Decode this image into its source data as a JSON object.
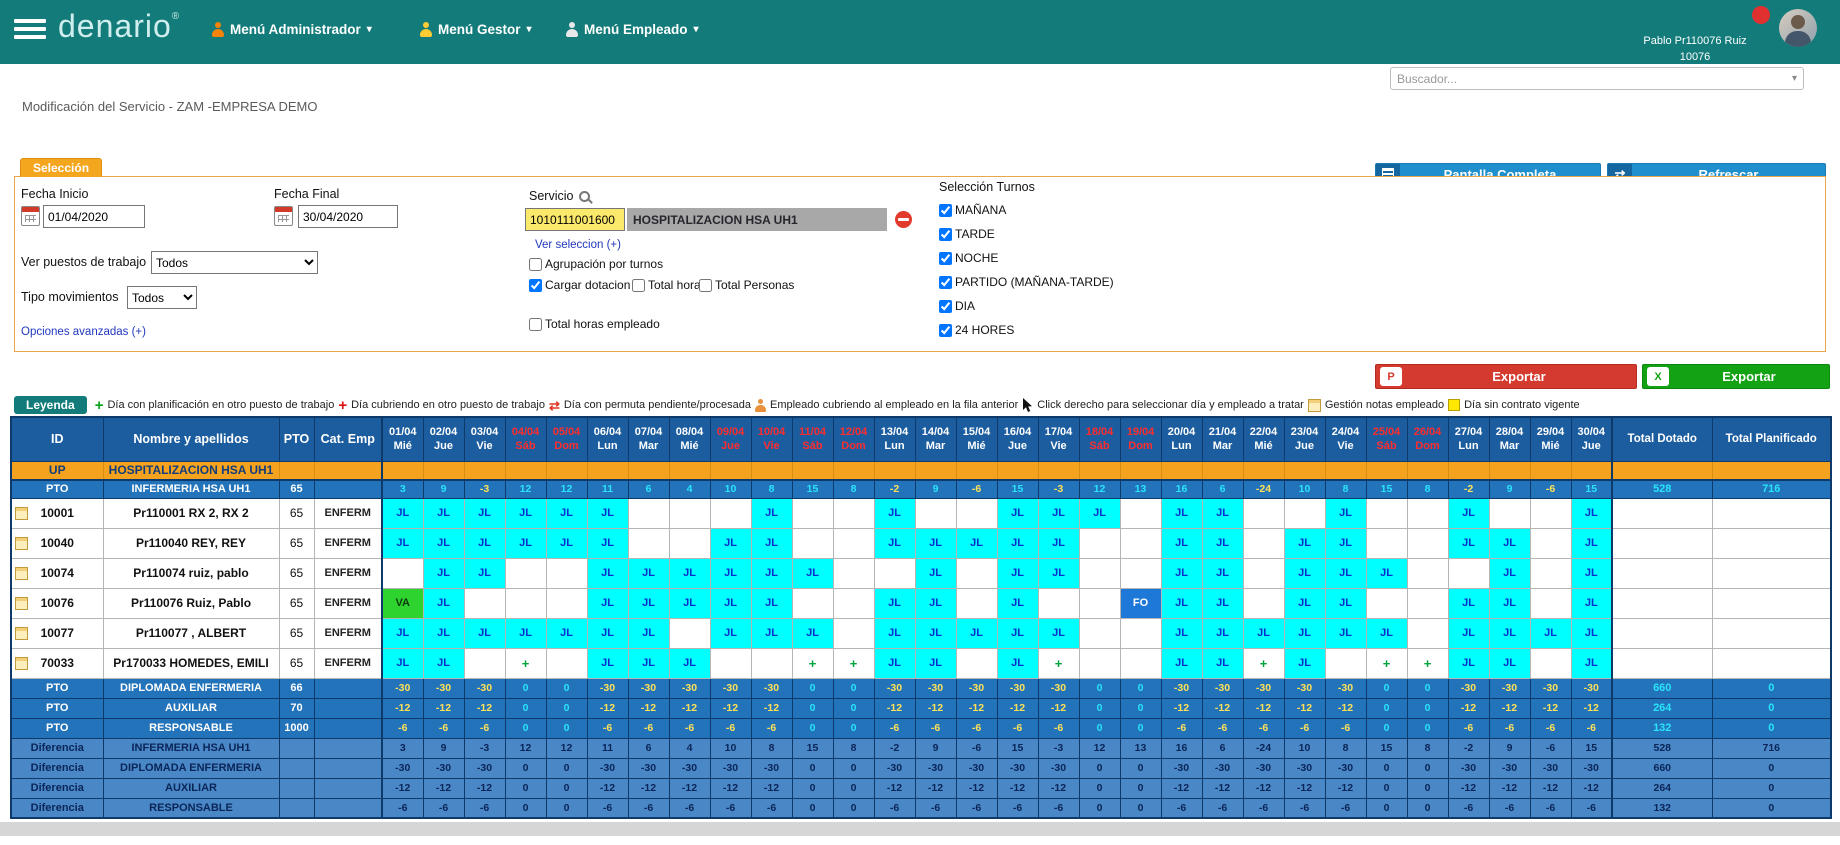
{
  "colors": {
    "topbar_teal": "#137c7b",
    "header_blue": "#1c5d9f",
    "pto_row_blue": "#2273ba",
    "diff_row_blue": "#4a87c6",
    "up_orange": "#f5a21f",
    "jl_cyan": "#00ffff",
    "va_green": "#2fd32f",
    "fo_blue": "#1d78d8",
    "holiday_red": "#ff2d2d",
    "button_blue": "#1f8fce",
    "export_pdf_red": "#d53a2f",
    "export_excel_green": "#13a213",
    "tab_orange": "#f5a61f",
    "service_code_yellow": "#fbe96c"
  },
  "topbar": {
    "brand": "denario",
    "brand_mark": "®",
    "menus": [
      {
        "label": "Menú Administrador"
      },
      {
        "label": "Menú Gestor"
      },
      {
        "label": "Menú Empleado"
      }
    ],
    "user_name": "Pablo Pr110076 Ruiz",
    "user_id": "10076"
  },
  "search": {
    "placeholder": "Buscador..."
  },
  "page_title": "Modificación del Servicio - ZAM -EMPRESA DEMO",
  "panel": {
    "tab": "Selección",
    "fecha_inicio_label": "Fecha Inicio",
    "fecha_inicio_value": "01/04/2020",
    "fecha_final_label": "Fecha Final",
    "fecha_final_value": "30/04/2020",
    "servicio_label": "Servicio",
    "servicio_code": "1010111001600",
    "servicio_name": "HOSPITALIZACION HSA UH1",
    "ver_seleccion": "Ver seleccion (+)",
    "checks": {
      "agrupacion": {
        "label": "Agrupación por turnos",
        "checked": false
      },
      "cargar": {
        "label": "Cargar dotacion",
        "checked": true
      },
      "total_horas": {
        "label": "Total horas",
        "checked": false
      },
      "total_personas": {
        "label": "Total Personas",
        "checked": false
      },
      "total_horas_empleado": {
        "label": "Total horas empleado",
        "checked": false
      }
    },
    "ver_puestos_label": "Ver puestos de trabajo",
    "ver_puestos_value": "Todos",
    "tipo_mov_label": "Tipo movimientos",
    "tipo_mov_value": "Todos",
    "opciones_avanzadas": "Opciones avanzadas (+)",
    "turnos_label": "Selección Turnos",
    "turnos": [
      {
        "label": "MAÑANA",
        "checked": true
      },
      {
        "label": "TARDE",
        "checked": true
      },
      {
        "label": "NOCHE",
        "checked": true
      },
      {
        "label": "PARTIDO (MAÑANA-TARDE)",
        "checked": true
      },
      {
        "label": "DIA",
        "checked": true
      },
      {
        "label": "24 HORES",
        "checked": true
      }
    ],
    "btn_pantalla": "Pantalla Completa",
    "btn_refrescar": "Refrescar"
  },
  "export": {
    "pdf_label": "Exportar",
    "excel_label": "Exportar"
  },
  "legend": {
    "button": "Leyenda",
    "items": [
      {
        "icon": "green-plus",
        "text": "Día con planificación en otro puesto de trabajo"
      },
      {
        "icon": "red-plus",
        "text": "Día cubriendo en otro puesto de trabajo"
      },
      {
        "icon": "red-swap",
        "text": "Día con permuta pendiente/procesada"
      },
      {
        "icon": "person",
        "text": "Empleado cubriendo al empleado en la fila anterior"
      },
      {
        "icon": "cursor",
        "text": "Click derecho para seleccionar día y empleado a tratar"
      },
      {
        "icon": "note",
        "text": "Gestión notas empleado"
      },
      {
        "icon": "yellow-square",
        "text": "Día sin contrato vigente"
      }
    ]
  },
  "grid": {
    "col_headers": [
      "ID",
      "Nombre y apellidos",
      "PTO",
      "Cat. Emp"
    ],
    "total_headers": [
      "Total Dotado",
      "Total Planificado"
    ],
    "dates": [
      {
        "date": "01/04",
        "day": "Mié",
        "holiday": false
      },
      {
        "date": "02/04",
        "day": "Jue",
        "holiday": false
      },
      {
        "date": "03/04",
        "day": "Vie",
        "holiday": false
      },
      {
        "date": "04/04",
        "day": "Sáb",
        "holiday": true
      },
      {
        "date": "05/04",
        "day": "Dom",
        "holiday": true
      },
      {
        "date": "06/04",
        "day": "Lun",
        "holiday": false
      },
      {
        "date": "07/04",
        "day": "Mar",
        "holiday": false
      },
      {
        "date": "08/04",
        "day": "Mié",
        "holiday": false
      },
      {
        "date": "09/04",
        "day": "Jue",
        "holiday": true
      },
      {
        "date": "10/04",
        "day": "Vie",
        "holiday": true
      },
      {
        "date": "11/04",
        "day": "Sáb",
        "holiday": true
      },
      {
        "date": "12/04",
        "day": "Dom",
        "holiday": true
      },
      {
        "date": "13/04",
        "day": "Lun",
        "holiday": false
      },
      {
        "date": "14/04",
        "day": "Mar",
        "holiday": false
      },
      {
        "date": "15/04",
        "day": "Mié",
        "holiday": false
      },
      {
        "date": "16/04",
        "day": "Jue",
        "holiday": false
      },
      {
        "date": "17/04",
        "day": "Vie",
        "holiday": false
      },
      {
        "date": "18/04",
        "day": "Sáb",
        "holiday": true
      },
      {
        "date": "19/04",
        "day": "Dom",
        "holiday": true
      },
      {
        "date": "20/04",
        "day": "Lun",
        "holiday": false
      },
      {
        "date": "21/04",
        "day": "Mar",
        "holiday": false
      },
      {
        "date": "22/04",
        "day": "Mié",
        "holiday": false
      },
      {
        "date": "23/04",
        "day": "Jue",
        "holiday": false
      },
      {
        "date": "24/04",
        "day": "Vie",
        "holiday": false
      },
      {
        "date": "25/04",
        "day": "Sáb",
        "holiday": true
      },
      {
        "date": "26/04",
        "day": "Dom",
        "holiday": true
      },
      {
        "date": "27/04",
        "day": "Lun",
        "holiday": false
      },
      {
        "date": "28/04",
        "day": "Mar",
        "holiday": false
      },
      {
        "date": "29/04",
        "day": "Mié",
        "holiday": false
      },
      {
        "date": "30/04",
        "day": "Jue",
        "holiday": false
      }
    ],
    "up_row": {
      "tag": "UP",
      "name": "HOSPITALIZACION HSA UH1"
    },
    "pto_rows_top": [
      {
        "tag": "PTO",
        "name": "INFERMERIA HSA UH1",
        "pto": "65",
        "cat": "",
        "values": [
          3,
          9,
          -3,
          12,
          12,
          11,
          6,
          4,
          10,
          8,
          15,
          8,
          -2,
          9,
          -6,
          15,
          -3,
          12,
          13,
          16,
          6,
          -24,
          10,
          8,
          15,
          8,
          -2,
          9,
          -6,
          15
        ],
        "total_dotado": "528",
        "total_planificado": "716"
      }
    ],
    "employees": [
      {
        "id": "10001",
        "name": "Pr110001 RX 2, RX 2",
        "pto": "65",
        "cat": "ENFERM",
        "cells": [
          "JL",
          "JL",
          "JL",
          "JL",
          "JL",
          "JL",
          "",
          "",
          "",
          "JL",
          "",
          "",
          "JL",
          "",
          "",
          "JL",
          "JL",
          "JL",
          "",
          "JL",
          "JL",
          "",
          "",
          "JL",
          "",
          "",
          "JL",
          "",
          "",
          "JL"
        ]
      },
      {
        "id": "10040",
        "name": "Pr110040 REY, REY",
        "pto": "65",
        "cat": "ENFERM",
        "cells": [
          "JL",
          "JL",
          "JL",
          "JL",
          "JL",
          "JL",
          "",
          "",
          "JL",
          "JL",
          "",
          "",
          "JL",
          "JL",
          "JL",
          "JL",
          "JL",
          "",
          "",
          "JL",
          "JL",
          "",
          "JL",
          "JL",
          "",
          "",
          "JL",
          "JL",
          "",
          "JL"
        ]
      },
      {
        "id": "10074",
        "name": "Pr110074 ruiz, pablo",
        "pto": "65",
        "cat": "ENFERM",
        "cells": [
          "",
          "JL",
          "JL",
          "",
          "",
          "JL",
          "JL",
          "JL",
          "JL",
          "JL",
          "JL",
          "",
          "",
          "JL",
          "",
          "JL",
          "JL",
          "",
          "",
          "JL",
          "JL",
          "",
          "JL",
          "JL",
          "JL",
          "",
          "",
          "JL",
          "",
          "JL"
        ]
      },
      {
        "id": "10076",
        "name": "Pr110076 Ruiz, Pablo",
        "pto": "65",
        "cat": "ENFERM",
        "cells": [
          "VA",
          "JL",
          "",
          "",
          "",
          "JL",
          "JL",
          "JL",
          "JL",
          "JL",
          "",
          "",
          "JL",
          "JL",
          "",
          "JL",
          "",
          "",
          "FO",
          "JL",
          "JL",
          "",
          "JL",
          "JL",
          "",
          "",
          "JL",
          "JL",
          "",
          "JL"
        ]
      },
      {
        "id": "10077",
        "name": "Pr110077 , ALBERT",
        "pto": "65",
        "cat": "ENFERM",
        "cells": [
          "JL",
          "JL",
          "JL",
          "JL",
          "JL",
          "JL",
          "JL",
          "",
          "JL",
          "JL",
          "JL",
          "",
          "JL",
          "JL",
          "JL",
          "JL",
          "JL",
          "",
          "",
          "JL",
          "JL",
          "JL",
          "JL",
          "JL",
          "JL",
          "",
          "JL",
          "JL",
          "JL",
          "JL"
        ]
      },
      {
        "id": "70033",
        "name": "Pr170033 HOMEDES, EMILI",
        "pto": "65",
        "cat": "ENFERM",
        "cells": [
          "JL",
          "JL",
          "",
          "+",
          "",
          "JL",
          "JL",
          "JL",
          "",
          "",
          "+",
          "+",
          "JL",
          "JL",
          "",
          "JL",
          "+",
          "",
          "",
          "JL",
          "JL",
          "+",
          "JL",
          "",
          "+",
          "+",
          "JL",
          "JL",
          "",
          "JL"
        ]
      }
    ],
    "pto_rows_bottom": [
      {
        "tag": "PTO",
        "name": "DIPLOMADA ENFERMERIA",
        "pto": "66",
        "cat": "",
        "values": [
          -30,
          -30,
          -30,
          0,
          0,
          -30,
          -30,
          -30,
          -30,
          -30,
          0,
          0,
          -30,
          -30,
          -30,
          -30,
          -30,
          0,
          0,
          -30,
          -30,
          -30,
          -30,
          -30,
          0,
          0,
          -30,
          -30,
          -30,
          -30
        ],
        "total_dotado": "660",
        "total_planificado": "0"
      },
      {
        "tag": "PTO",
        "name": "AUXILIAR",
        "pto": "70",
        "cat": "",
        "values": [
          -12,
          -12,
          -12,
          0,
          0,
          -12,
          -12,
          -12,
          -12,
          -12,
          0,
          0,
          -12,
          -12,
          -12,
          -12,
          -12,
          0,
          0,
          -12,
          -12,
          -12,
          -12,
          -12,
          0,
          0,
          -12,
          -12,
          -12,
          -12
        ],
        "total_dotado": "264",
        "total_planificado": "0"
      },
      {
        "tag": "PTO",
        "name": "RESPONSABLE",
        "pto": "1000",
        "cat": "",
        "values": [
          -6,
          -6,
          -6,
          0,
          0,
          -6,
          -6,
          -6,
          -6,
          -6,
          0,
          0,
          -6,
          -6,
          -6,
          -6,
          -6,
          0,
          0,
          -6,
          -6,
          -6,
          -6,
          -6,
          0,
          0,
          -6,
          -6,
          -6,
          -6
        ],
        "total_dotado": "132",
        "total_planificado": "0"
      }
    ],
    "diff_rows": [
      {
        "tag": "Diferencia",
        "name": "INFERMERIA HSA UH1",
        "pto": "",
        "cat": "",
        "values": [
          3,
          9,
          -3,
          12,
          12,
          11,
          6,
          4,
          10,
          8,
          15,
          8,
          -2,
          9,
          -6,
          15,
          -3,
          12,
          13,
          16,
          6,
          -24,
          10,
          8,
          15,
          8,
          -2,
          9,
          -6,
          15
        ],
        "total_dotado": "528",
        "total_planificado": "716"
      },
      {
        "tag": "Diferencia",
        "name": "DIPLOMADA ENFERMERIA",
        "pto": "",
        "cat": "",
        "values": [
          -30,
          -30,
          -30,
          0,
          0,
          -30,
          -30,
          -30,
          -30,
          -30,
          0,
          0,
          -30,
          -30,
          -30,
          -30,
          -30,
          0,
          0,
          -30,
          -30,
          -30,
          -30,
          -30,
          0,
          0,
          -30,
          -30,
          -30,
          -30
        ],
        "total_dotado": "660",
        "total_planificado": "0"
      },
      {
        "tag": "Diferencia",
        "name": "AUXILIAR",
        "pto": "",
        "cat": "",
        "values": [
          -12,
          -12,
          -12,
          0,
          0,
          -12,
          -12,
          -12,
          -12,
          -12,
          0,
          0,
          -12,
          -12,
          -12,
          -12,
          -12,
          0,
          0,
          -12,
          -12,
          -12,
          -12,
          -12,
          0,
          0,
          -12,
          -12,
          -12,
          -12
        ],
        "total_dotado": "264",
        "total_planificado": "0"
      },
      {
        "tag": "Diferencia",
        "name": "RESPONSABLE",
        "pto": "",
        "cat": "",
        "values": [
          -6,
          -6,
          -6,
          0,
          0,
          -6,
          -6,
          -6,
          -6,
          -6,
          0,
          0,
          -6,
          -6,
          -6,
          -6,
          -6,
          0,
          0,
          -6,
          -6,
          -6,
          -6,
          -6,
          0,
          0,
          -6,
          -6,
          -6,
          -6
        ],
        "total_dotado": "132",
        "total_planificado": "0"
      }
    ]
  }
}
